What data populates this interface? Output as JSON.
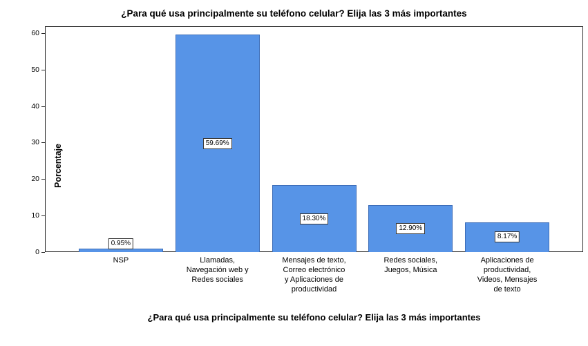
{
  "chart_data": {
    "type": "bar",
    "title": "¿Para qué usa principalmente su teléfono celular? Elija las 3 más importantes",
    "xlabel": "¿Para qué usa principalmente su teléfono celular? Elija las 3 más importantes",
    "ylabel": "Porcentaje",
    "categories": [
      "NSP",
      "Llamadas,\nNavegación web y\nRedes sociales",
      "Mensajes de texto,\nCorreo electrónico\ny Aplicaciones de\nproductividad",
      "Redes sociales,\nJuegos, Música",
      "Aplicaciones de\nproductividad,\nVideos, Mensajes\nde texto"
    ],
    "values": [
      0.95,
      59.69,
      18.3,
      12.9,
      8.17
    ],
    "value_labels": [
      "0.95%",
      "59.69%",
      "18.30%",
      "12.90%",
      "8.17%"
    ],
    "ylim": [
      0,
      62
    ],
    "yticks": [
      0,
      10,
      20,
      30,
      40,
      50,
      60
    ],
    "grid": false,
    "legend": "none",
    "bar_color": "#5794e7",
    "bar_edge_color": "#3c6db8"
  }
}
